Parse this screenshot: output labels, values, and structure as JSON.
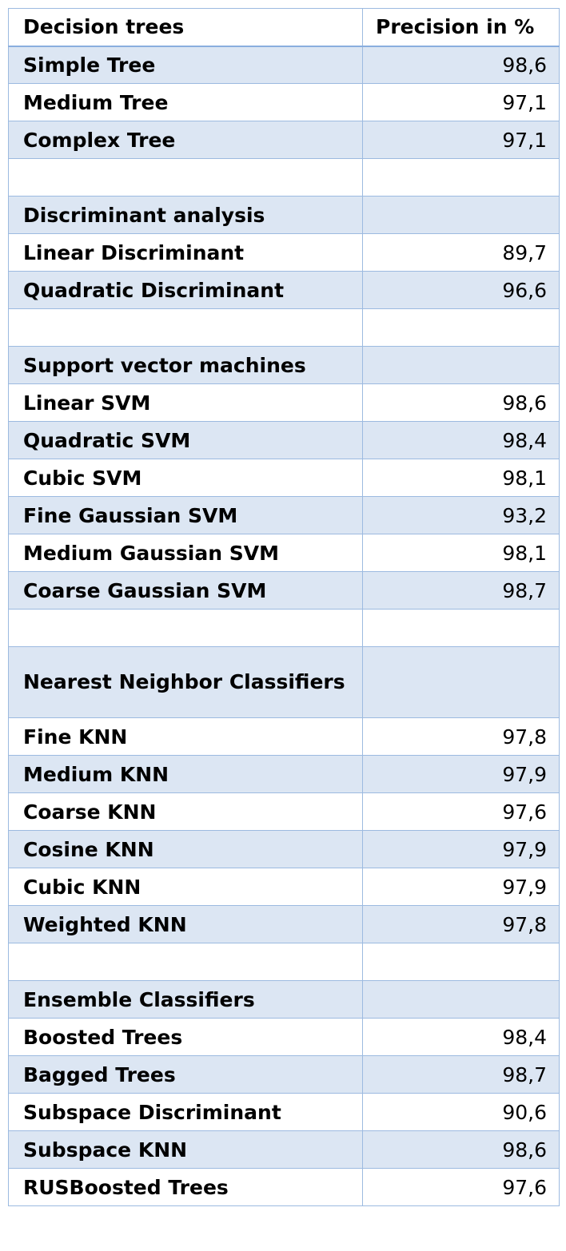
{
  "table": {
    "headers": [
      "Decision trees",
      "Precision in %"
    ],
    "rows": [
      {
        "label": "Simple Tree",
        "value": "98,6"
      },
      {
        "label": "Medium Tree",
        "value": "97,1"
      },
      {
        "label": "Complex Tree",
        "value": "97,1"
      },
      {
        "label": "",
        "value": ""
      },
      {
        "label": "Discriminant analysis",
        "value": ""
      },
      {
        "label": "Linear Discriminant",
        "value": "89,7"
      },
      {
        "label": "Quadratic Discriminant",
        "value": "96,6"
      },
      {
        "label": "",
        "value": ""
      },
      {
        "label": "Support vector machines",
        "value": ""
      },
      {
        "label": "Linear SVM",
        "value": "98,6"
      },
      {
        "label": "Quadratic SVM",
        "value": "98,4"
      },
      {
        "label": "Cubic SVM",
        "value": "98,1"
      },
      {
        "label": "Fine Gaussian SVM",
        "value": "93,2"
      },
      {
        "label": "Medium Gaussian SVM",
        "value": "98,1"
      },
      {
        "label": "Coarse Gaussian SVM",
        "value": "98,7"
      },
      {
        "label": "",
        "value": ""
      },
      {
        "label": "Nearest Neighbor Classifiers",
        "value": ""
      },
      {
        "label": "Fine KNN",
        "value": "97,8"
      },
      {
        "label": "Medium KNN",
        "value": "97,9"
      },
      {
        "label": "Coarse KNN",
        "value": "97,6"
      },
      {
        "label": "Cosine KNN",
        "value": "97,9"
      },
      {
        "label": "Cubic KNN",
        "value": "97,9"
      },
      {
        "label": "Weighted KNN",
        "value": "97,8"
      },
      {
        "label": "",
        "value": ""
      },
      {
        "label": "Ensemble Classifiers",
        "value": ""
      },
      {
        "label": "Boosted Trees",
        "value": "98,4"
      },
      {
        "label": "Bagged Trees",
        "value": "98,7"
      },
      {
        "label": "Subspace Discriminant",
        "value": "90,6"
      },
      {
        "label": "Subspace KNN",
        "value": "98,6"
      },
      {
        "label": "RUSBoosted Trees",
        "value": "97,6"
      }
    ]
  },
  "colors": {
    "border": "#9cbae0",
    "shade": "#dce6f3"
  }
}
